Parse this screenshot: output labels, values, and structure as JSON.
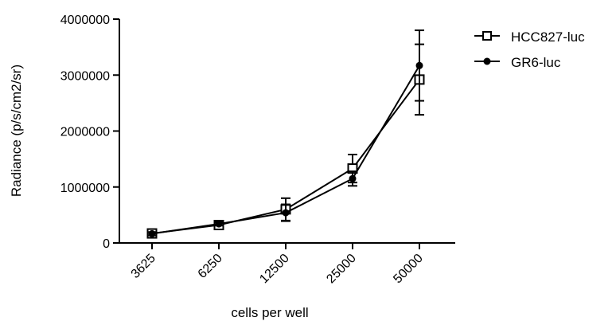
{
  "chart_data": {
    "type": "line",
    "title": "",
    "xlabel": "cells per well",
    "ylabel": "Radiance (p/s/cm2/sr)",
    "categories": [
      "3625",
      "6250",
      "12500",
      "25000",
      "50000"
    ],
    "yticks": [
      "0",
      "1000000",
      "2000000",
      "3000000",
      "4000000"
    ],
    "ylim": [
      0,
      4000000
    ],
    "grid": false,
    "legend_position": "right",
    "series": [
      {
        "name": "HCC827-luc",
        "marker": "open-square",
        "color": "#000000",
        "values": [
          170000,
          320000,
          600000,
          1330000,
          2920000
        ],
        "err": [
          30000,
          30000,
          200000,
          250000,
          630000
        ]
      },
      {
        "name": "GR6-luc",
        "marker": "filled-circle",
        "color": "#000000",
        "values": [
          165000,
          340000,
          540000,
          1150000,
          3170000
        ],
        "err": [
          30000,
          30000,
          150000,
          130000,
          630000
        ]
      }
    ]
  }
}
